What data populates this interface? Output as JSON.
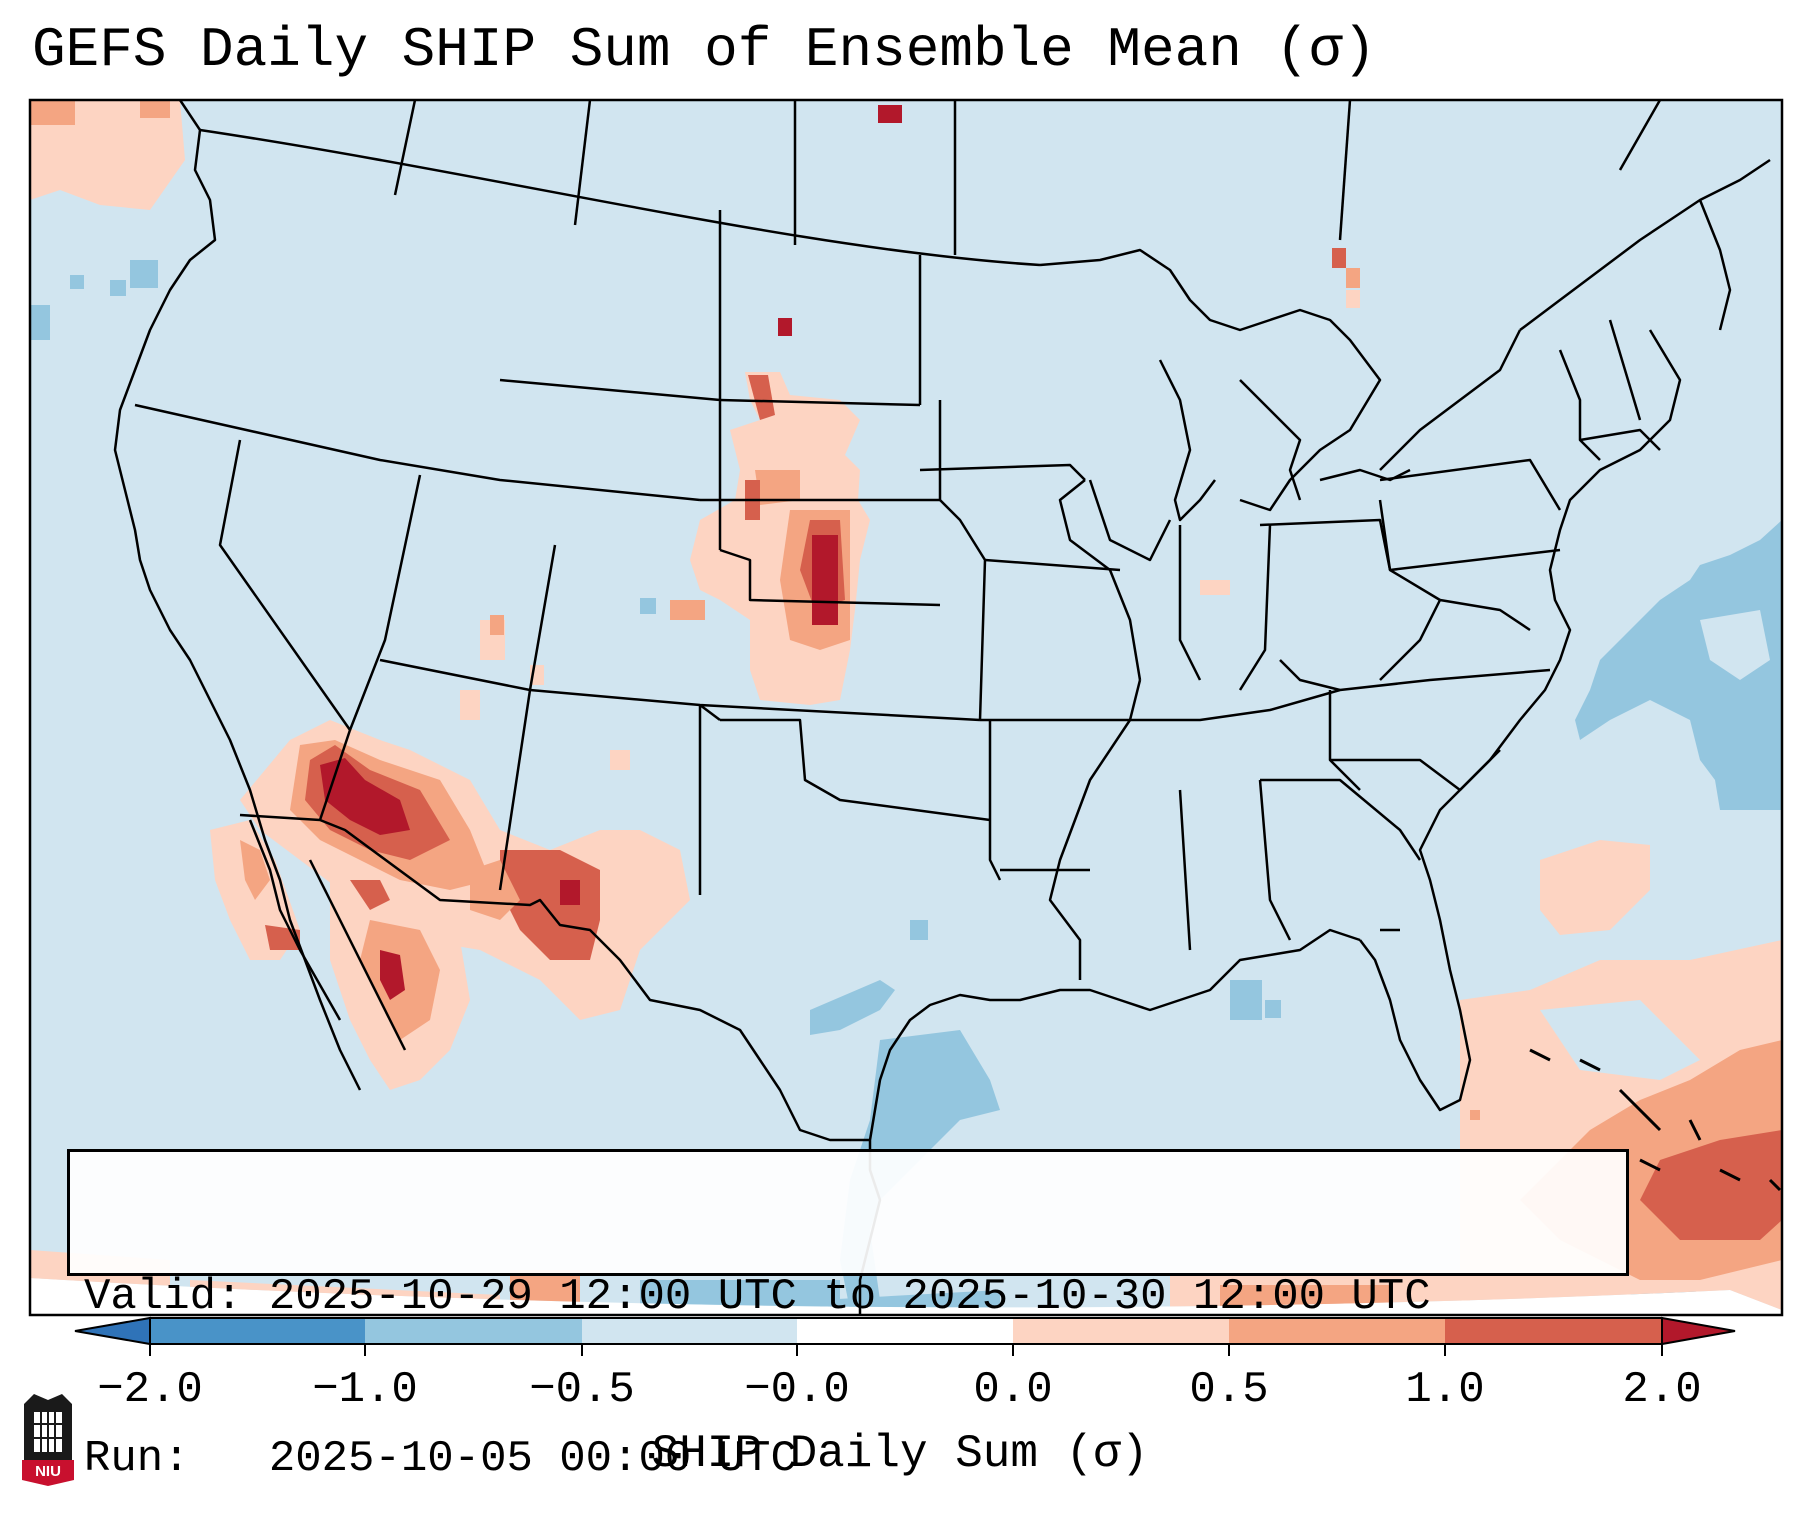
{
  "title": "GEFS Daily SHIP Sum of Ensemble Mean (σ)",
  "info": {
    "valid_line": "Valid: 2025-10-29 12:00 UTC to 2025-10-30 12:00 UTC",
    "run_line": "Run:   2025-10-05 00:00 UTC"
  },
  "colorbar": {
    "label": "SHIP Daily Sum (σ)",
    "ticks": [
      "−2.0",
      "−1.0",
      "−0.5",
      "−0.0",
      "0.0",
      "0.5",
      "1.0",
      "2.0"
    ],
    "colors": [
      "#2f73b8",
      "#4993c8",
      "#94c6df",
      "#d1e5f0",
      "#fdd4c2",
      "#f4a582",
      "#d6604d",
      "#b2182b"
    ]
  },
  "map": {
    "region": "CONUS",
    "background_color": "#d1e5f0",
    "positive_areas": [
      "Southwest",
      "Nebraska / South Dakota",
      "Sonora",
      "Caribbean"
    ],
    "negative_areas": [
      "Gulf of Mexico",
      "Western Atlantic"
    ]
  },
  "logo": {
    "text": "NIU"
  }
}
